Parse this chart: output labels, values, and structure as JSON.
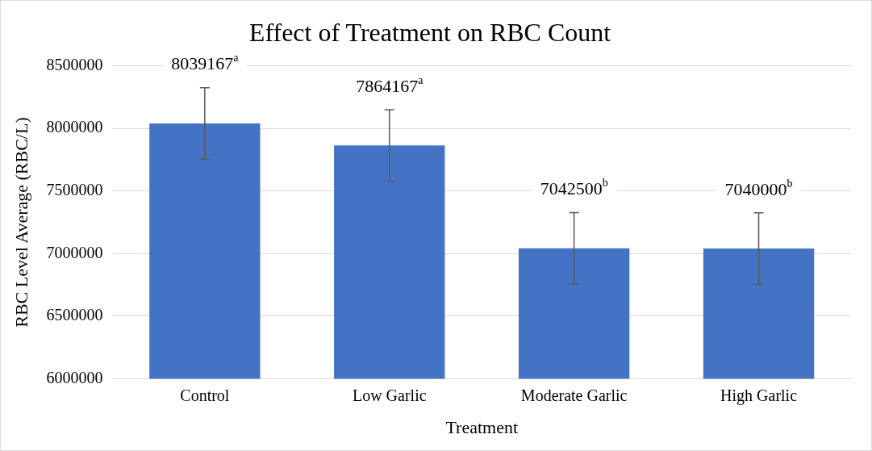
{
  "chart_data": {
    "type": "bar",
    "title": "Effect of Treatment on RBC Count",
    "xlabel": "Treatment",
    "ylabel": "RBC Level Average (RBC/L)",
    "categories": [
      "Control",
      "Low Garlic",
      "Moderate Garlic",
      "High Garlic"
    ],
    "values": [
      8039167,
      7864167,
      7042500,
      7040000
    ],
    "errors": [
      285000,
      285000,
      285000,
      285000
    ],
    "value_labels": [
      "8039167$^{a}$",
      "7864167$^{a}$",
      "7042500$^{b}$",
      "7040000$^{b}$"
    ],
    "color": "#4472c4",
    "ylim": [
      6000000,
      8500000
    ],
    "yticks": [
      6000000,
      6500000,
      7000000,
      7500000,
      8000000,
      8500000
    ],
    "grid": "y"
  }
}
